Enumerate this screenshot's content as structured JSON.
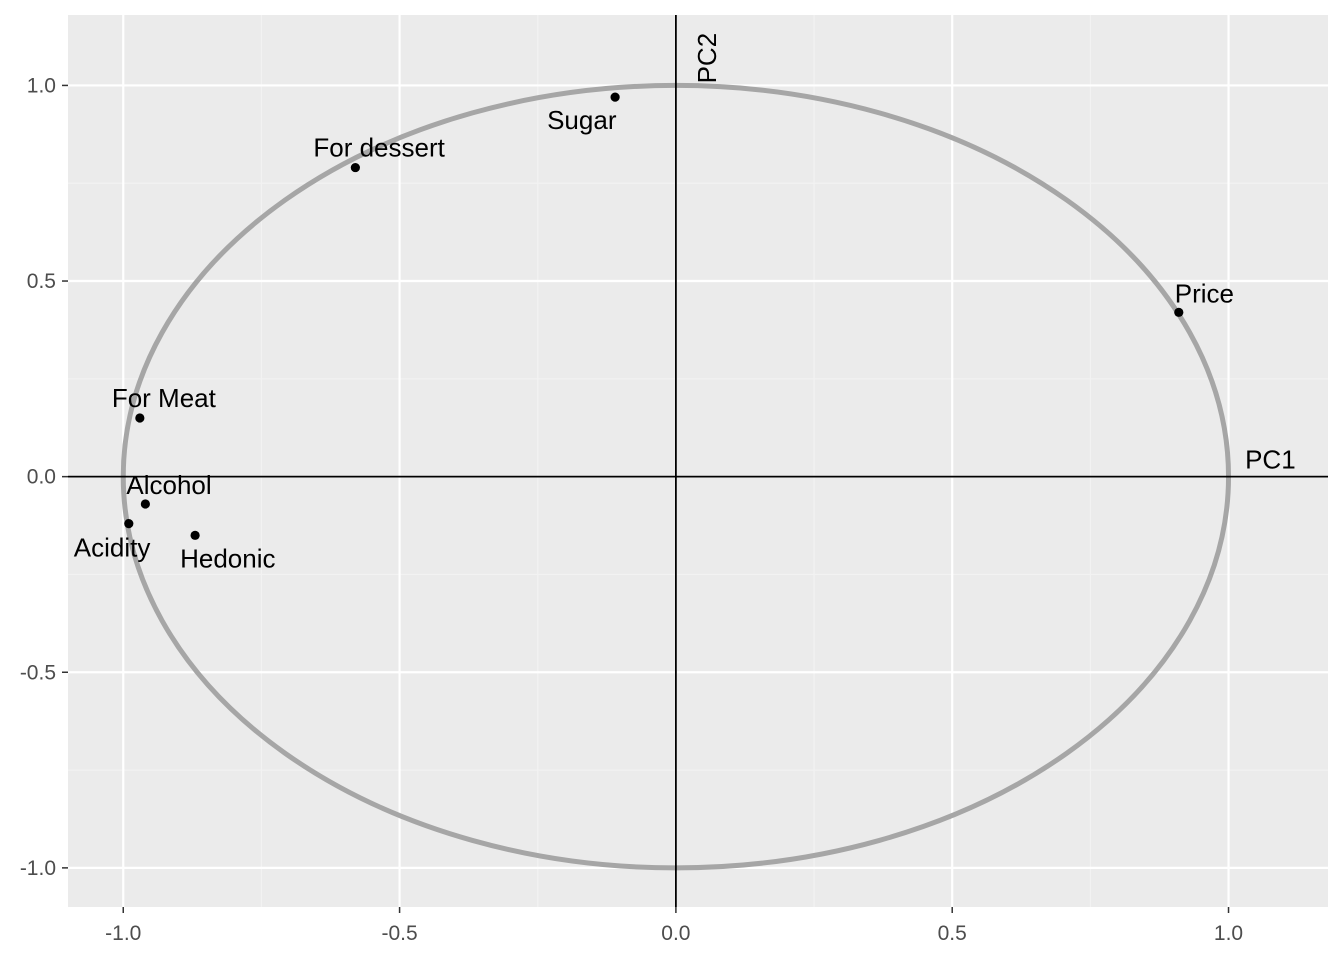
{
  "chart_data": {
    "type": "scatter",
    "title": "",
    "xlabel": "",
    "ylabel": "",
    "xlim": [
      -1.1,
      1.18
    ],
    "ylim": [
      -1.1,
      1.18
    ],
    "x_ticks": [
      -1.0,
      -0.5,
      0.0,
      0.5,
      1.0
    ],
    "x_tick_labels": [
      "-1.0",
      "-0.5",
      "0.0",
      "0.5",
      "1.0"
    ],
    "y_ticks": [
      -1.0,
      -0.5,
      0.0,
      0.5,
      1.0
    ],
    "y_tick_labels": [
      "-1.0",
      "-0.5",
      "0.0",
      "0.5",
      "1.0"
    ],
    "grid": true,
    "legend": "none",
    "unit_circle": {
      "radius": 1.0,
      "color": "#a6a6a6"
    },
    "reference_lines": {
      "horizontal": {
        "y": 0,
        "label": "PC1"
      },
      "vertical": {
        "x": 0,
        "label": "PC2"
      }
    },
    "points": [
      {
        "label": "Sugar",
        "x": -0.11,
        "y": 0.97
      },
      {
        "label": "For dessert",
        "x": -0.58,
        "y": 0.79
      },
      {
        "label": "Price",
        "x": 0.91,
        "y": 0.42
      },
      {
        "label": "For Meat",
        "x": -0.97,
        "y": 0.15
      },
      {
        "label": "Alcohol",
        "x": -0.96,
        "y": -0.07
      },
      {
        "label": "Acidity",
        "x": -0.99,
        "y": -0.12
      },
      {
        "label": "Hedonic",
        "x": -0.87,
        "y": -0.15
      }
    ],
    "colors": {
      "panel_background": "#ebebeb",
      "grid_major": "#ffffff",
      "grid_minor": "#f2f2f2",
      "points": "#000000"
    }
  }
}
